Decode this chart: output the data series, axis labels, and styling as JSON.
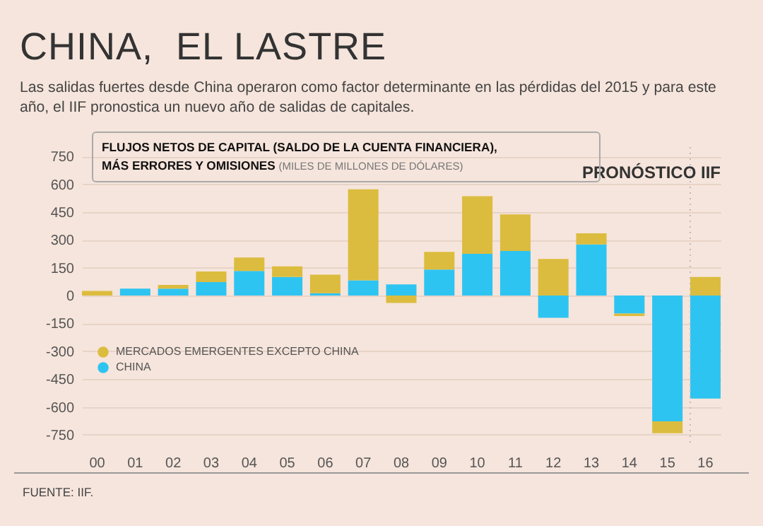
{
  "chart_data": {
    "type": "bar",
    "title": "CHINA,  EL LASTRE",
    "subtitle": "Las salidas fuertes desde China operaron como factor determinante en las pérdidas del 2015 y para este año, el IIF pronostica un nuevo año de salidas de capitales.",
    "ylabel": "(MILES DE MILLONES DE DÓLARES)",
    "annotations": [
      "FLUJOS NETOS DE CAPITAL (SALDO DE LA CUENTA FINANCIERA), MÁS ERRORES Y OMISIONES",
      "FUENTE: IIF."
    ],
    "categories": [
      "00",
      "01",
      "02",
      "03",
      "04",
      "05",
      "06",
      "07",
      "08",
      "09",
      "10",
      "11",
      "12",
      "13",
      "14",
      "15",
      "16"
    ],
    "stacked": true,
    "series": [
      {
        "name": "CHINA",
        "color": "#2ec4f2",
        "values": [
          0,
          37,
          37,
          72,
          132,
          100,
          12,
          82,
          60,
          140,
          225,
          240,
          -120,
          275,
          -97,
          -678,
          -555
        ]
      },
      {
        "name": "MERCADOS EMERGENTES EXCEPTO CHINA",
        "color": "#dcbc3e",
        "values": [
          25,
          0,
          20,
          58,
          73,
          57,
          100,
          490,
          -40,
          95,
          310,
          197,
          197,
          60,
          -13,
          -64,
          100
        ]
      }
    ],
    "ylim": [
      -800,
      800
    ],
    "yticks": [
      -750,
      -600,
      -450,
      -300,
      -150,
      0,
      150,
      300,
      450,
      600,
      750
    ],
    "grid": "y",
    "legend": "bottom left",
    "ref_lines": [
      {
        "axis": "x",
        "value": "16",
        "label": "PRONÓSTICO IIF",
        "line_style": "dotted"
      }
    ]
  }
}
